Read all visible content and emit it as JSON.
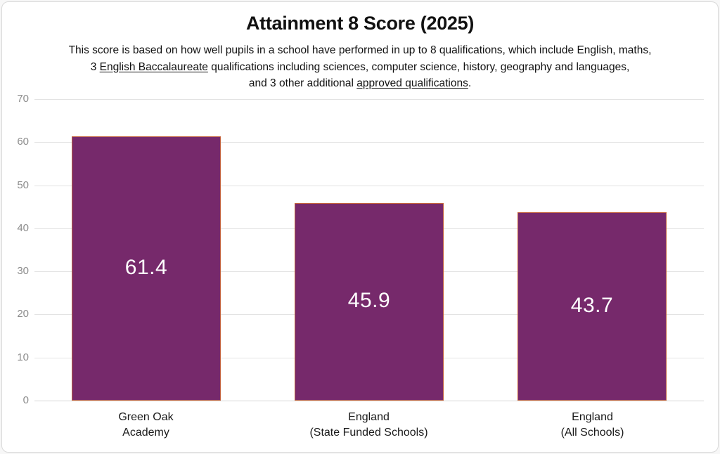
{
  "page": {
    "background": "#f7f7f7",
    "card_background": "#ffffff",
    "card_border_color": "#d9d9d9"
  },
  "chart_data": {
    "type": "bar",
    "title": "Attainment 8 Score (2025)",
    "subtitle_lines": [
      {
        "segments": [
          {
            "text": "This score is based on how well pupils in a school have performed in up to 8 qualifications, which include English, maths,",
            "underline": false
          }
        ]
      },
      {
        "segments": [
          {
            "text": "3 ",
            "underline": false
          },
          {
            "text": "English Baccalaureate",
            "underline": true
          },
          {
            "text": " qualifications including sciences, computer science, history, geography and languages,",
            "underline": false
          }
        ]
      },
      {
        "segments": [
          {
            "text": "and 3 other additional ",
            "underline": false
          },
          {
            "text": "approved qualifications",
            "underline": true
          },
          {
            "text": ".",
            "underline": false
          }
        ]
      }
    ],
    "categories": [
      "Green Oak\nAcademy",
      "England\n(State Funded Schools)",
      "England\n(All Schools)"
    ],
    "values": [
      61.4,
      45.9,
      43.7
    ],
    "value_labels": [
      "61.4",
      "45.9",
      "43.7"
    ],
    "ylim": [
      0,
      70
    ],
    "ytick_step": 10,
    "ytick_labels": [
      "0",
      "10",
      "20",
      "30",
      "40",
      "50",
      "60",
      "70"
    ],
    "grid": true,
    "legend": false,
    "colors": {
      "bar_fill": "#76296B",
      "bar_border": "#C2603C",
      "gridline": "#E3E3E3",
      "zero_line": "#D6D6D6",
      "axis_tick_label": "#8C8C8C",
      "category_label": "#1A1A1A",
      "value_label": "#FFFFFF"
    }
  }
}
